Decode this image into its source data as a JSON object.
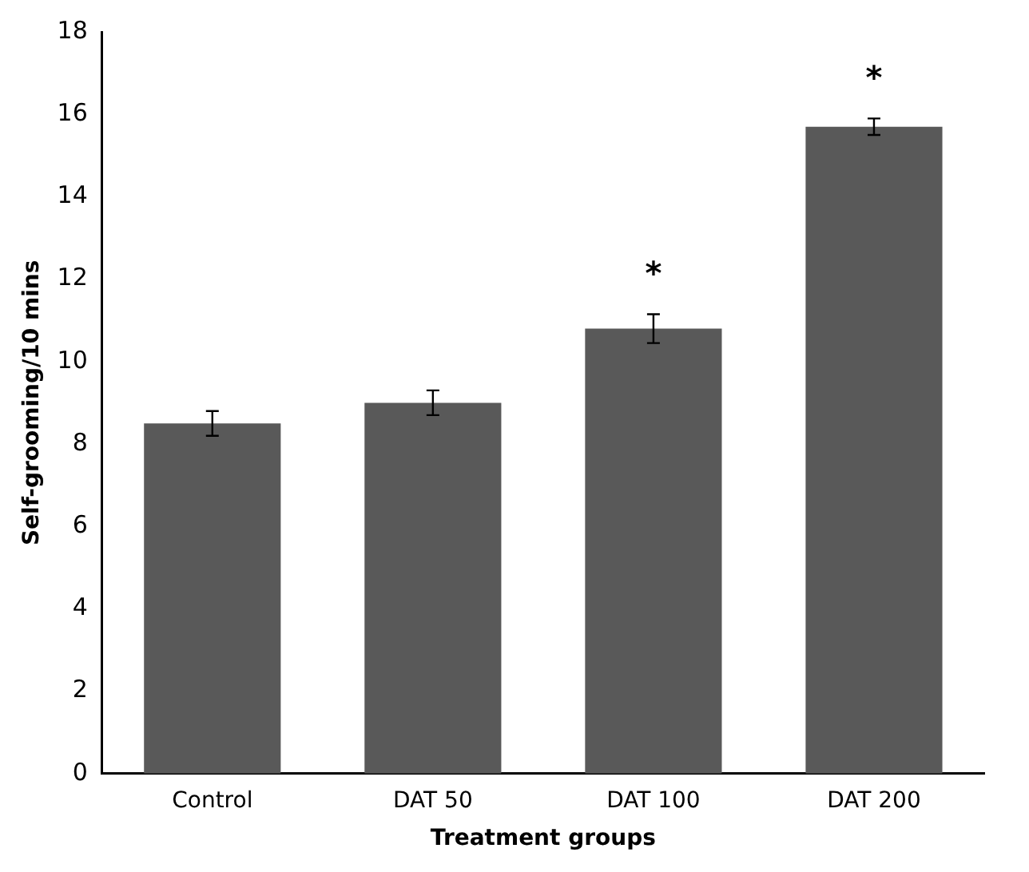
{
  "chart_data": {
    "type": "bar",
    "xlabel": "Treatment groups",
    "ylabel": "Self-grooming/10 mins",
    "categories": [
      "Control",
      "DAT 50",
      "DAT 100",
      "DAT 200"
    ],
    "values": [
      8.5,
      9.0,
      10.8,
      15.7
    ],
    "errors": [
      0.3,
      0.3,
      0.35,
      0.2
    ],
    "color": "#595959",
    "ylim": [
      0,
      18
    ],
    "yticks": [
      0,
      2,
      4,
      6,
      8,
      10,
      12,
      14,
      16,
      18
    ],
    "grid": false,
    "legend": false,
    "annotations": [
      {
        "text": "*",
        "x": "DAT 100",
        "y": 10.8
      },
      {
        "text": "*",
        "x": "DAT 200",
        "y": 15.7
      }
    ]
  }
}
